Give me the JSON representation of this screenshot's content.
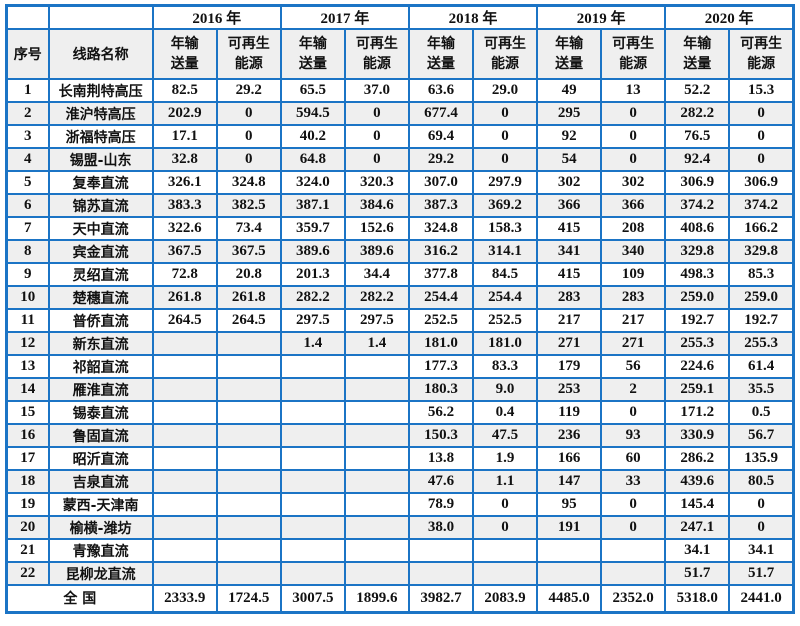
{
  "table": {
    "header": {
      "serial_label": "序号",
      "line_label": "线路名称",
      "years": [
        "2016 年",
        "2017 年",
        "2018 年",
        "2019 年",
        "2020 年"
      ],
      "sub_transmission": "年输\n送量",
      "sub_renewable": "可再生\n能源"
    },
    "rows": [
      {
        "no": "1",
        "name": "长南荆特高压",
        "values": [
          "82.5",
          "29.2",
          "65.5",
          "37.0",
          "63.6",
          "29.0",
          "49",
          "13",
          "52.2",
          "15.3"
        ]
      },
      {
        "no": "2",
        "name": "淮沪特高压",
        "values": [
          "202.9",
          "0",
          "594.5",
          "0",
          "677.4",
          "0",
          "295",
          "0",
          "282.2",
          "0"
        ]
      },
      {
        "no": "3",
        "name": "浙福特高压",
        "values": [
          "17.1",
          "0",
          "40.2",
          "0",
          "69.4",
          "0",
          "92",
          "0",
          "76.5",
          "0"
        ]
      },
      {
        "no": "4",
        "name": "锡盟-山东",
        "values": [
          "32.8",
          "0",
          "64.8",
          "0",
          "29.2",
          "0",
          "54",
          "0",
          "92.4",
          "0"
        ]
      },
      {
        "no": "5",
        "name": "复奉直流",
        "values": [
          "326.1",
          "324.8",
          "324.0",
          "320.3",
          "307.0",
          "297.9",
          "302",
          "302",
          "306.9",
          "306.9"
        ]
      },
      {
        "no": "6",
        "name": "锦苏直流",
        "values": [
          "383.3",
          "382.5",
          "387.1",
          "384.6",
          "387.3",
          "369.2",
          "366",
          "366",
          "374.2",
          "374.2"
        ]
      },
      {
        "no": "7",
        "name": "天中直流",
        "values": [
          "322.6",
          "73.4",
          "359.7",
          "152.6",
          "324.8",
          "158.3",
          "415",
          "208",
          "408.6",
          "166.2"
        ]
      },
      {
        "no": "8",
        "name": "宾金直流",
        "values": [
          "367.5",
          "367.5",
          "389.6",
          "389.6",
          "316.2",
          "314.1",
          "341",
          "340",
          "329.8",
          "329.8"
        ]
      },
      {
        "no": "9",
        "name": "灵绍直流",
        "values": [
          "72.8",
          "20.8",
          "201.3",
          "34.4",
          "377.8",
          "84.5",
          "415",
          "109",
          "498.3",
          "85.3"
        ]
      },
      {
        "no": "10",
        "name": "楚穗直流",
        "values": [
          "261.8",
          "261.8",
          "282.2",
          "282.2",
          "254.4",
          "254.4",
          "283",
          "283",
          "259.0",
          "259.0"
        ]
      },
      {
        "no": "11",
        "name": "普侨直流",
        "values": [
          "264.5",
          "264.5",
          "297.5",
          "297.5",
          "252.5",
          "252.5",
          "217",
          "217",
          "192.7",
          "192.7"
        ]
      },
      {
        "no": "12",
        "name": "新东直流",
        "values": [
          "",
          "",
          "1.4",
          "1.4",
          "181.0",
          "181.0",
          "271",
          "271",
          "255.3",
          "255.3"
        ]
      },
      {
        "no": "13",
        "name": "祁韶直流",
        "values": [
          "",
          "",
          "",
          "",
          "177.3",
          "83.3",
          "179",
          "56",
          "224.6",
          "61.4"
        ]
      },
      {
        "no": "14",
        "name": "雁淮直流",
        "values": [
          "",
          "",
          "",
          "",
          "180.3",
          "9.0",
          "253",
          "2",
          "259.1",
          "35.5"
        ]
      },
      {
        "no": "15",
        "name": "锡泰直流",
        "values": [
          "",
          "",
          "",
          "",
          "56.2",
          "0.4",
          "119",
          "0",
          "171.2",
          "0.5"
        ]
      },
      {
        "no": "16",
        "name": "鲁固直流",
        "values": [
          "",
          "",
          "",
          "",
          "150.3",
          "47.5",
          "236",
          "93",
          "330.9",
          "56.7"
        ]
      },
      {
        "no": "17",
        "name": "昭沂直流",
        "values": [
          "",
          "",
          "",
          "",
          "13.8",
          "1.9",
          "166",
          "60",
          "286.2",
          "135.9"
        ]
      },
      {
        "no": "18",
        "name": "吉泉直流",
        "values": [
          "",
          "",
          "",
          "",
          "47.6",
          "1.1",
          "147",
          "33",
          "439.6",
          "80.5"
        ]
      },
      {
        "no": "19",
        "name": "蒙西-天津南",
        "values": [
          "",
          "",
          "",
          "",
          "78.9",
          "0",
          "95",
          "0",
          "145.4",
          "0"
        ]
      },
      {
        "no": "20",
        "name": "榆横-潍坊",
        "values": [
          "",
          "",
          "",
          "",
          "38.0",
          "0",
          "191",
          "0",
          "247.1",
          "0"
        ]
      },
      {
        "no": "21",
        "name": "青豫直流",
        "values": [
          "",
          "",
          "",
          "",
          "",
          "",
          "",
          "",
          "34.1",
          "34.1"
        ]
      },
      {
        "no": "22",
        "name": "昆柳龙直流",
        "values": [
          "",
          "",
          "",
          "",
          "",
          "",
          "",
          "",
          "51.7",
          "51.7"
        ]
      }
    ],
    "total": {
      "label": "全  国",
      "values": [
        "2333.9",
        "1724.5",
        "3007.5",
        "1899.6",
        "3982.7",
        "2083.9",
        "4485.0",
        "2352.0",
        "5318.0",
        "2441.0"
      ]
    }
  },
  "colors": {
    "border_blue": "#1B74C5",
    "alt_row_gray": "#EFEFEF"
  }
}
